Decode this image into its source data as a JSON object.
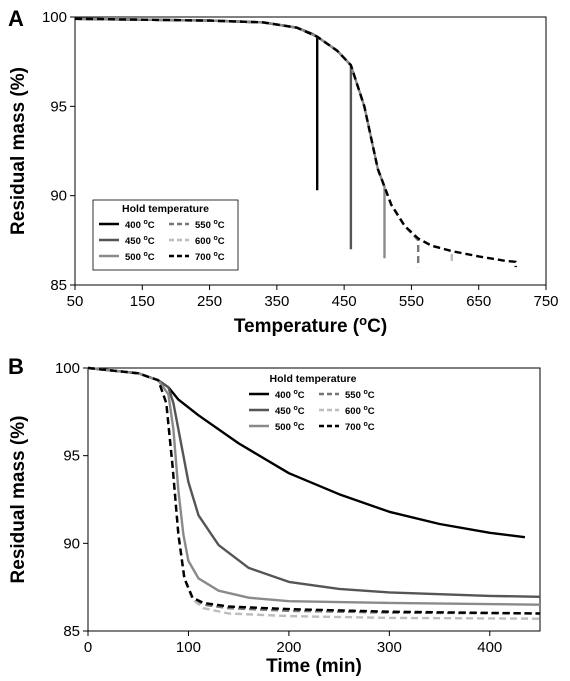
{
  "chart_data": [
    {
      "type": "line",
      "panel_label": "A",
      "xlabel": "Temperature (",
      "xlabel_sup": "o",
      "xlabel_tail": "C)",
      "ylabel": "Residual mass (%)",
      "xlim": [
        50,
        750
      ],
      "ylim": [
        85,
        100
      ],
      "xticks": [
        50,
        150,
        250,
        350,
        450,
        550,
        650,
        750
      ],
      "yticks": [
        85,
        90,
        95,
        100
      ],
      "grid": false,
      "legend": {
        "title": "Hold temperature",
        "placement": "bottom-left",
        "entries": [
          {
            "text": "400 ",
            "sup": "o",
            "unit": "C"
          },
          {
            "text": "450 ",
            "sup": "o",
            "unit": "C"
          },
          {
            "text": "500 ",
            "sup": "o",
            "unit": "C"
          },
          {
            "text": "550 ",
            "sup": "o",
            "unit": "C"
          },
          {
            "text": "600 ",
            "sup": "o",
            "unit": "C"
          },
          {
            "text": "700 ",
            "sup": "o",
            "unit": "C"
          }
        ]
      },
      "series": [
        {
          "color": "#000000",
          "dash": "solid",
          "points": [
            [
              50,
              99.9
            ],
            [
              150,
              99.85
            ],
            [
              250,
              99.8
            ],
            [
              330,
              99.7
            ],
            [
              380,
              99.4
            ],
            [
              400,
              99.1
            ],
            [
              410,
              98.9
            ],
            [
              410,
              90.3
            ]
          ]
        },
        {
          "color": "#555555",
          "dash": "solid",
          "points": [
            [
              50,
              99.9
            ],
            [
              150,
              99.85
            ],
            [
              250,
              99.8
            ],
            [
              330,
              99.7
            ],
            [
              380,
              99.4
            ],
            [
              410,
              98.9
            ],
            [
              440,
              98.1
            ],
            [
              460,
              97.3
            ],
            [
              460,
              87.0
            ]
          ]
        },
        {
          "color": "#8a8a8a",
          "dash": "solid",
          "points": [
            [
              50,
              99.9
            ],
            [
              150,
              99.85
            ],
            [
              250,
              99.8
            ],
            [
              330,
              99.7
            ],
            [
              380,
              99.4
            ],
            [
              410,
              98.9
            ],
            [
              440,
              98.1
            ],
            [
              460,
              97.3
            ],
            [
              480,
              95.0
            ],
            [
              500,
              91.5
            ],
            [
              510,
              90.5
            ],
            [
              510,
              86.5
            ]
          ]
        },
        {
          "color": "#777777",
          "dash": "dashed",
          "points": [
            [
              50,
              99.9
            ],
            [
              150,
              99.85
            ],
            [
              250,
              99.8
            ],
            [
              330,
              99.7
            ],
            [
              380,
              99.4
            ],
            [
              410,
              98.9
            ],
            [
              440,
              98.1
            ],
            [
              460,
              97.3
            ],
            [
              480,
              95.0
            ],
            [
              500,
              91.5
            ],
            [
              520,
              89.5
            ],
            [
              540,
              88.3
            ],
            [
              560,
              87.5
            ],
            [
              560,
              86.0
            ]
          ]
        },
        {
          "color": "#bdbdbd",
          "dash": "dashed",
          "points": [
            [
              50,
              99.9
            ],
            [
              150,
              99.85
            ],
            [
              250,
              99.8
            ],
            [
              330,
              99.7
            ],
            [
              380,
              99.4
            ],
            [
              410,
              98.9
            ],
            [
              440,
              98.1
            ],
            [
              460,
              97.3
            ],
            [
              480,
              95.0
            ],
            [
              500,
              91.5
            ],
            [
              520,
              89.5
            ],
            [
              540,
              88.3
            ],
            [
              560,
              87.6
            ],
            [
              580,
              87.2
            ],
            [
              610,
              86.9
            ],
            [
              610,
              86.2
            ]
          ]
        },
        {
          "color": "#000000",
          "dash": "dashed",
          "points": [
            [
              50,
              99.9
            ],
            [
              150,
              99.85
            ],
            [
              250,
              99.8
            ],
            [
              330,
              99.7
            ],
            [
              380,
              99.4
            ],
            [
              410,
              98.9
            ],
            [
              440,
              98.1
            ],
            [
              460,
              97.3
            ],
            [
              480,
              95.0
            ],
            [
              500,
              91.5
            ],
            [
              520,
              89.5
            ],
            [
              540,
              88.3
            ],
            [
              560,
              87.6
            ],
            [
              580,
              87.2
            ],
            [
              610,
              86.9
            ],
            [
              650,
              86.6
            ],
            [
              690,
              86.35
            ],
            [
              705,
              86.3
            ],
            [
              705,
              86.0
            ]
          ]
        }
      ]
    },
    {
      "type": "line",
      "panel_label": "B",
      "xlabel": "Time (min)",
      "ylabel": "Residual mass (%)",
      "xlim": [
        0,
        450
      ],
      "ylim": [
        85,
        100
      ],
      "xticks": [
        0,
        100,
        200,
        300,
        400
      ],
      "yticks": [
        85,
        90,
        95,
        100
      ],
      "grid": false,
      "legend": {
        "title": "Hold temperature",
        "placement": "top-right",
        "entries": [
          {
            "text": "400 ",
            "sup": "o",
            "unit": "C"
          },
          {
            "text": "450 ",
            "sup": "o",
            "unit": "C"
          },
          {
            "text": "500 ",
            "sup": "o",
            "unit": "C"
          },
          {
            "text": "550 ",
            "sup": "o",
            "unit": "C"
          },
          {
            "text": "600 ",
            "sup": "o",
            "unit": "C"
          },
          {
            "text": "700 ",
            "sup": "o",
            "unit": "C"
          }
        ]
      },
      "series": [
        {
          "color": "#000000",
          "dash": "solid",
          "points": [
            [
              0,
              100
            ],
            [
              50,
              99.7
            ],
            [
              70,
              99.3
            ],
            [
              80,
              98.9
            ],
            [
              90,
              98.2
            ],
            [
              110,
              97.3
            ],
            [
              150,
              95.7
            ],
            [
              200,
              94.0
            ],
            [
              250,
              92.8
            ],
            [
              300,
              91.8
            ],
            [
              350,
              91.1
            ],
            [
              400,
              90.6
            ],
            [
              435,
              90.35
            ]
          ]
        },
        {
          "color": "#555555",
          "dash": "solid",
          "points": [
            [
              0,
              100
            ],
            [
              50,
              99.7
            ],
            [
              70,
              99.3
            ],
            [
              80,
              98.9
            ],
            [
              85,
              98.0
            ],
            [
              90,
              96.5
            ],
            [
              100,
              93.5
            ],
            [
              110,
              91.6
            ],
            [
              130,
              89.9
            ],
            [
              160,
              88.6
            ],
            [
              200,
              87.8
            ],
            [
              250,
              87.4
            ],
            [
              300,
              87.2
            ],
            [
              350,
              87.1
            ],
            [
              400,
              87.0
            ],
            [
              450,
              86.95
            ]
          ]
        },
        {
          "color": "#8a8a8a",
          "dash": "solid",
          "points": [
            [
              0,
              100
            ],
            [
              50,
              99.7
            ],
            [
              70,
              99.3
            ],
            [
              80,
              98.5
            ],
            [
              85,
              96.5
            ],
            [
              90,
              93.0
            ],
            [
              95,
              90.5
            ],
            [
              100,
              89.0
            ],
            [
              110,
              88.0
            ],
            [
              130,
              87.3
            ],
            [
              160,
              86.9
            ],
            [
              200,
              86.7
            ],
            [
              300,
              86.6
            ],
            [
              450,
              86.5
            ]
          ]
        },
        {
          "color": "#777777",
          "dash": "dashed",
          "points": [
            [
              0,
              100
            ],
            [
              50,
              99.7
            ],
            [
              70,
              99.3
            ],
            [
              78,
              98.0
            ],
            [
              84,
              94.5
            ],
            [
              90,
              90.5
            ],
            [
              96,
              88.0
            ],
            [
              104,
              86.9
            ],
            [
              115,
              86.5
            ],
            [
              140,
              86.3
            ],
            [
              200,
              86.15
            ],
            [
              300,
              86.05
            ],
            [
              450,
              86.0
            ]
          ]
        },
        {
          "color": "#bdbdbd",
          "dash": "dashed",
          "points": [
            [
              0,
              100
            ],
            [
              50,
              99.7
            ],
            [
              70,
              99.3
            ],
            [
              78,
              98.0
            ],
            [
              84,
              94.5
            ],
            [
              90,
              90.5
            ],
            [
              96,
              88.0
            ],
            [
              104,
              86.8
            ],
            [
              115,
              86.3
            ],
            [
              140,
              86.0
            ],
            [
              200,
              85.85
            ],
            [
              300,
              85.75
            ],
            [
              450,
              85.7
            ]
          ]
        },
        {
          "color": "#000000",
          "dash": "dashed",
          "points": [
            [
              0,
              100
            ],
            [
              50,
              99.7
            ],
            [
              70,
              99.3
            ],
            [
              78,
              98.0
            ],
            [
              84,
              94.5
            ],
            [
              90,
              90.5
            ],
            [
              96,
              88.0
            ],
            [
              104,
              86.9
            ],
            [
              115,
              86.6
            ],
            [
              140,
              86.4
            ],
            [
              200,
              86.25
            ],
            [
              300,
              86.1
            ],
            [
              450,
              86.0
            ]
          ]
        }
      ]
    }
  ]
}
